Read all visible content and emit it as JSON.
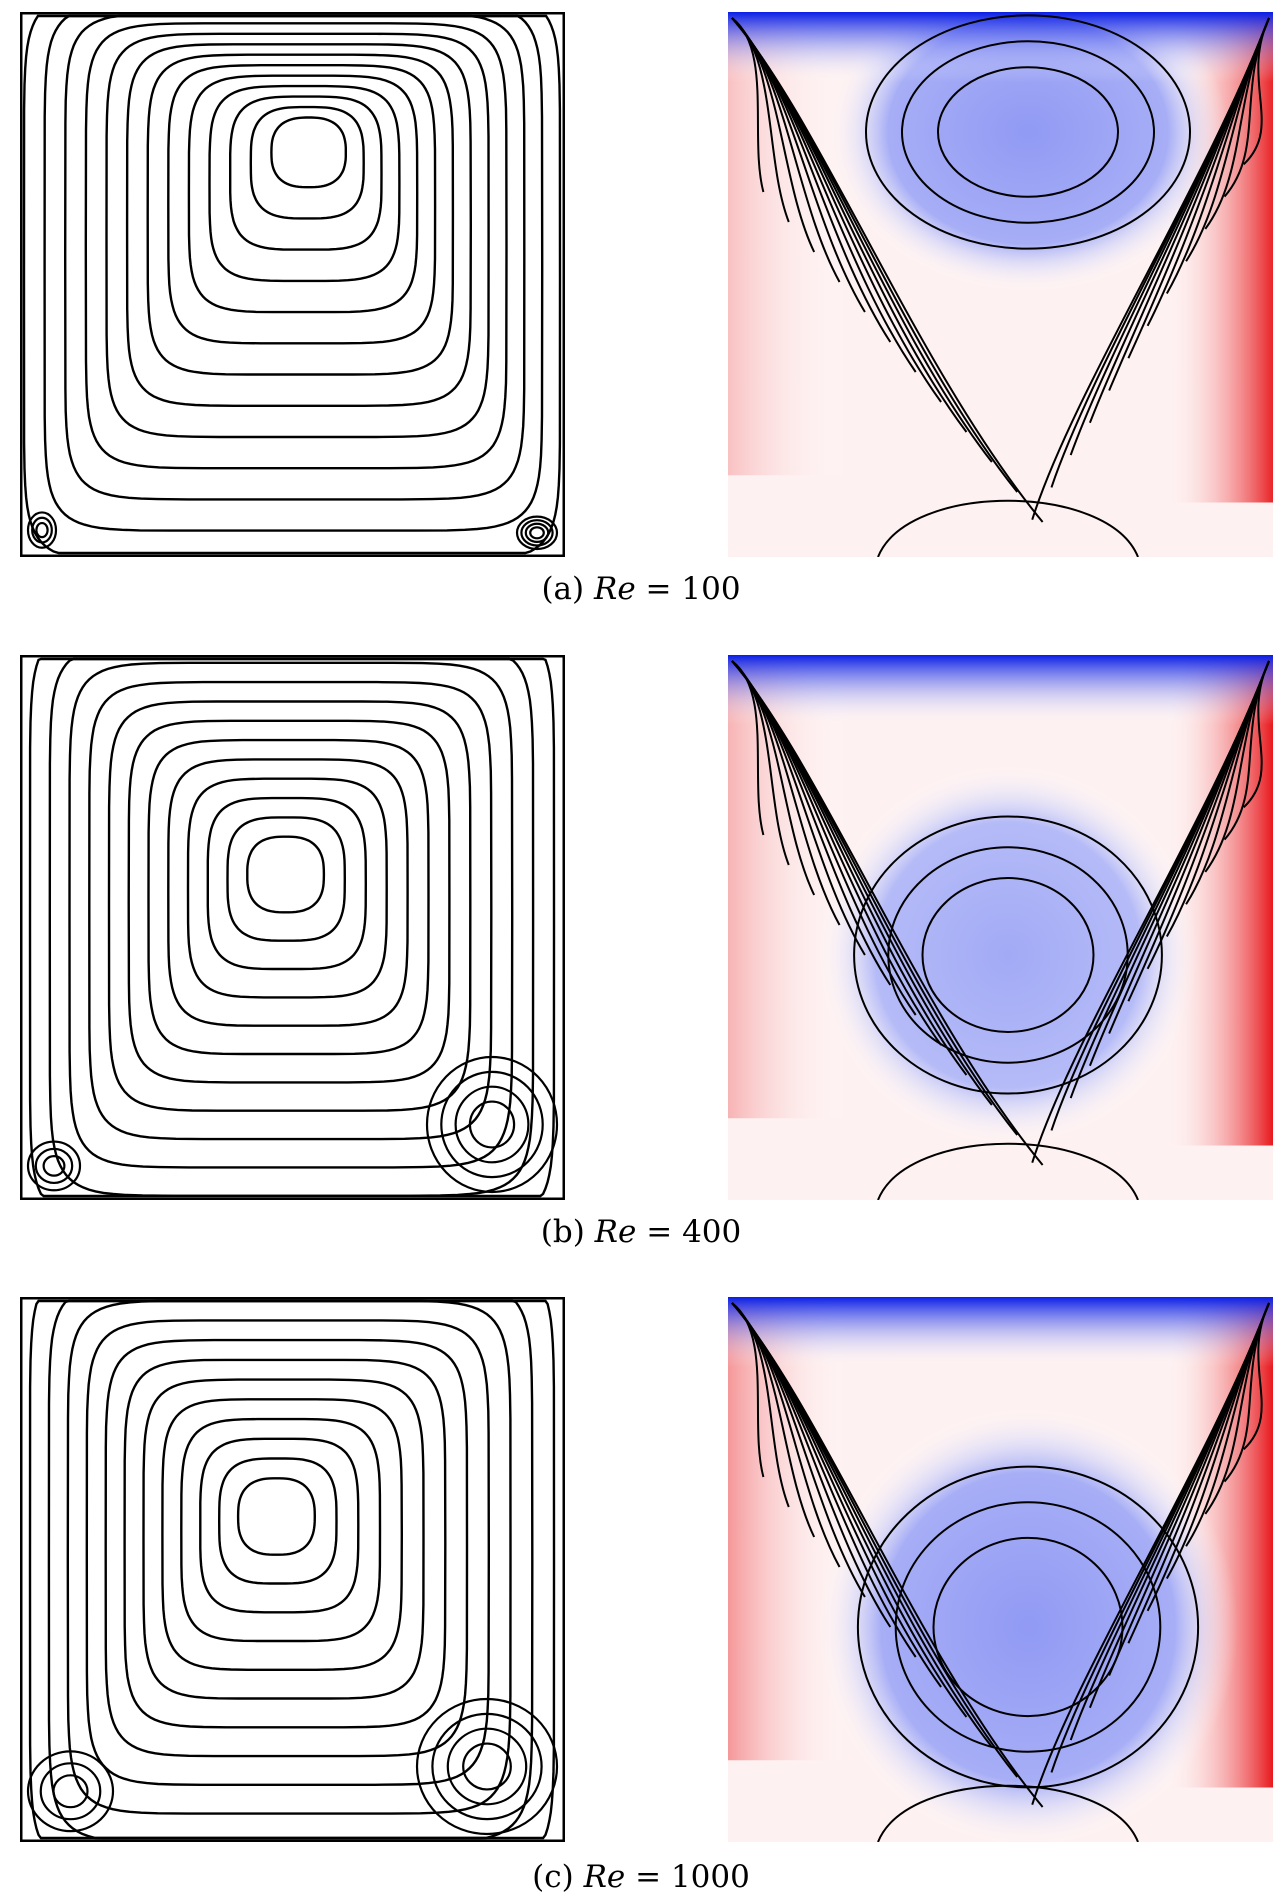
{
  "figures": [
    {
      "label": "(a)",
      "variable": "Re",
      "equals": "=",
      "value": "100",
      "re": 100
    },
    {
      "label": "(b)",
      "variable": "Re",
      "equals": "=",
      "value": "400",
      "re": 400
    },
    {
      "label": "(c)",
      "variable": "Re",
      "equals": "=",
      "value": "1000",
      "re": 1000
    }
  ],
  "colors": {
    "negative": "#0a1ee6",
    "positive": "#e8181c",
    "neutral": "#ffffff",
    "lines": "#000000"
  }
}
